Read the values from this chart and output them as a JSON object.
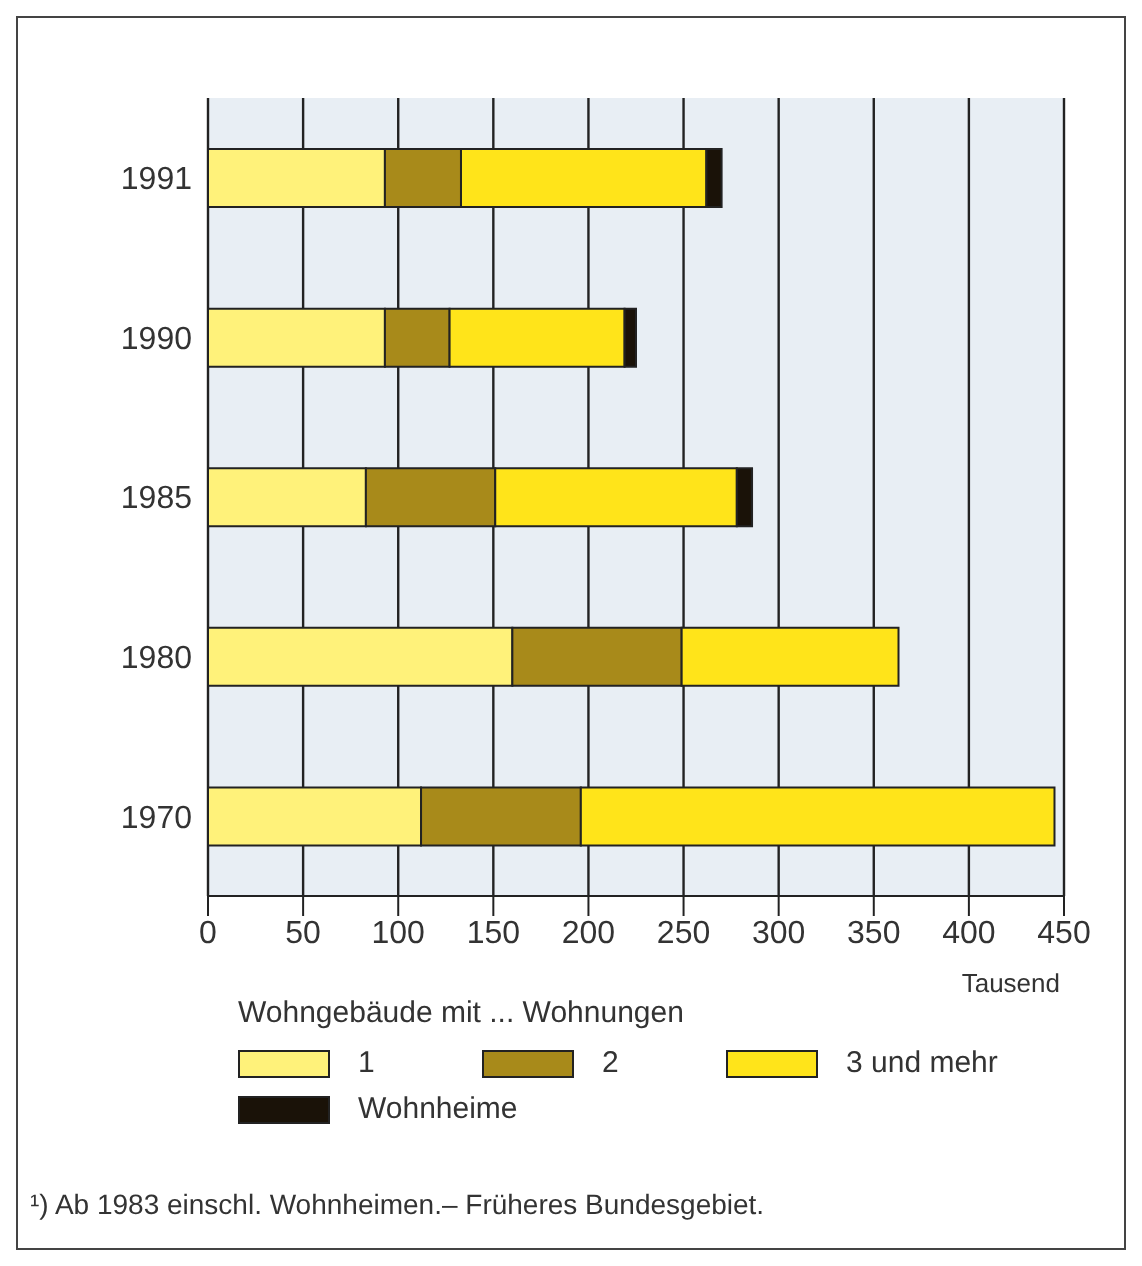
{
  "chart_data": {
    "type": "bar",
    "orientation": "horizontal",
    "stacked": true,
    "categories": [
      "1991",
      "1990",
      "1985",
      "1980",
      "1970"
    ],
    "series": [
      {
        "name": "1",
        "color": "#fff27a",
        "values": [
          93,
          93,
          83,
          160,
          112
        ]
      },
      {
        "name": "2",
        "color": "#a88a1a",
        "values": [
          40,
          34,
          68,
          89,
          84
        ]
      },
      {
        "name": "3 und mehr",
        "color": "#ffe41a",
        "values": [
          129,
          92,
          127,
          114,
          249
        ]
      },
      {
        "name": "Wohnheime",
        "color": "#1a1208",
        "values": [
          8,
          6,
          8,
          null,
          null
        ]
      }
    ],
    "xlim": [
      0,
      450
    ],
    "xticks": [
      0,
      50,
      100,
      150,
      200,
      250,
      300,
      350,
      400,
      450
    ],
    "xlabel": "Tausend",
    "legend_title": "Wohngebäude mit ... Wohnungen",
    "legend": "bottom",
    "grid": "x",
    "annotations": [
      "¹) Ab 1983 einschl. Wohnheimen.– Früheres Bundesgebiet."
    ]
  }
}
